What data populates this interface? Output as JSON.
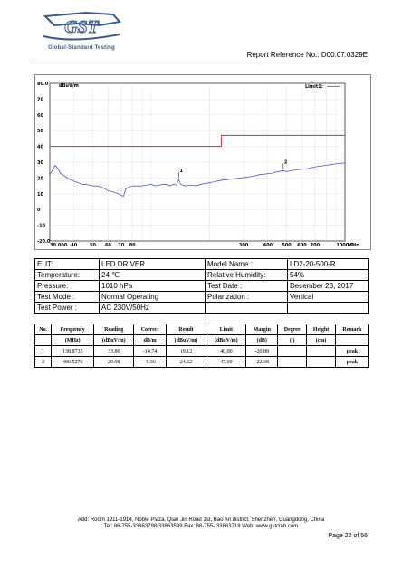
{
  "header": {
    "logo_text": "GST",
    "logo_subtitle": "Global-Standard Testing",
    "report_reference": "Report Reference No.: D00.07.0329E"
  },
  "chart_data": {
    "type": "line",
    "unit_label": "dBuV/m",
    "x_unit": "MHz",
    "x_scale": "log",
    "xlim": [
      30,
      1000
    ],
    "ylim": [
      -20,
      80
    ],
    "y_ticks": [
      "80.0",
      "70",
      "60",
      "50",
      "40",
      "30",
      "20",
      "10",
      "0",
      "-10",
      "-20.0"
    ],
    "x_ticks": [
      "30.000",
      "40",
      "50",
      "60",
      "70",
      "80",
      "300",
      "400",
      "500",
      "600",
      "700",
      "1000.0"
    ],
    "legend_label": "Limit1:",
    "legend_color": "#cc3333",
    "limit": {
      "color": "#cc3333",
      "points": [
        [
          30,
          40
        ],
        [
          230,
          40
        ],
        [
          230,
          47
        ],
        [
          1000,
          47
        ]
      ]
    },
    "series": [
      {
        "color": "#3344cc",
        "points": [
          [
            30,
            22
          ],
          [
            31,
            25
          ],
          [
            32,
            28
          ],
          [
            33,
            26
          ],
          [
            34,
            23
          ],
          [
            35,
            22
          ],
          [
            36,
            21
          ],
          [
            37,
            20
          ],
          [
            38,
            19
          ],
          [
            40,
            18
          ],
          [
            42,
            17
          ],
          [
            44,
            16
          ],
          [
            46,
            16
          ],
          [
            48,
            15.5
          ],
          [
            50,
            15
          ],
          [
            53,
            15
          ],
          [
            56,
            14
          ],
          [
            60,
            12
          ],
          [
            64,
            11
          ],
          [
            68,
            10
          ],
          [
            70,
            9
          ],
          [
            72,
            8.5
          ],
          [
            74,
            13
          ],
          [
            76,
            14
          ],
          [
            80,
            15
          ],
          [
            85,
            15
          ],
          [
            90,
            15
          ],
          [
            95,
            15.5
          ],
          [
            100,
            16
          ],
          [
            105,
            15
          ],
          [
            110,
            15.5
          ],
          [
            115,
            16
          ],
          [
            120,
            16
          ],
          [
            125,
            15
          ],
          [
            130,
            16
          ],
          [
            135,
            15.5
          ],
          [
            138.87,
            19.12
          ],
          [
            142,
            16
          ],
          [
            150,
            15
          ],
          [
            160,
            15.5
          ],
          [
            170,
            15
          ],
          [
            180,
            16
          ],
          [
            190,
            16.5
          ],
          [
            200,
            17
          ],
          [
            210,
            17.5
          ],
          [
            220,
            18
          ],
          [
            230,
            18.5
          ],
          [
            250,
            19
          ],
          [
            270,
            19.5
          ],
          [
            290,
            20
          ],
          [
            310,
            20.5
          ],
          [
            330,
            21
          ],
          [
            360,
            22
          ],
          [
            390,
            22.5
          ],
          [
            420,
            23
          ],
          [
            450,
            24
          ],
          [
            480.53,
            24.62
          ],
          [
            500,
            24
          ],
          [
            550,
            25
          ],
          [
            600,
            25.5
          ],
          [
            650,
            26
          ],
          [
            700,
            27
          ],
          [
            800,
            28
          ],
          [
            900,
            29
          ],
          [
            1000,
            29.5
          ]
        ]
      }
    ],
    "markers": [
      {
        "label": "1",
        "x": 138.8735,
        "y": 19.12
      },
      {
        "label": "2",
        "x": 480.5276,
        "y": 24.62
      }
    ]
  },
  "test_info": {
    "rows": [
      {
        "label1": "EUT:",
        "value1": "LED DRIVER",
        "label2": "Model Name :",
        "value2": "LD2-20-500-R"
      },
      {
        "label1": "Temperature:",
        "value1": "24 ℃",
        "label2": "Relative Humidity:",
        "value2": "54%"
      },
      {
        "label1": "Pressure:",
        "value1": "1010 hPa",
        "label2": "Test Date :",
        "value2": "December 23, 2017"
      },
      {
        "label1": "Test Mode :",
        "value1": "Normal Operating",
        "label2": "Polarization :",
        "value2": "Vertical"
      },
      {
        "label1": "Test Power :",
        "value1": "AC 230V/50Hz",
        "label2": "",
        "value2": ""
      }
    ]
  },
  "results": {
    "headers": [
      "No.",
      "Frequency",
      "Reading",
      "Correct",
      "Result",
      "Limit",
      "Margin",
      "Degree",
      "Height",
      "Remark"
    ],
    "units": [
      "",
      "(MHz)",
      "(dBuV/m)",
      "dB/m",
      "(dBuV/m)",
      "(dBuV/m)",
      "(dB)",
      "(    )",
      "(cm)",
      ""
    ],
    "rows": [
      [
        "1",
        "138.8735",
        "33.86",
        "-14.74",
        "19.12",
        "40.00",
        "-20.88",
        "",
        "",
        "peak"
      ],
      [
        "2",
        "480.5276",
        "29.98",
        "-5.36",
        "24.62",
        "47.00",
        "-22.38",
        "",
        "",
        "peak"
      ]
    ]
  },
  "footer": {
    "address": "Add: Room 1911-1914, Noble Plaza, Qian Jin Road 1st, Bao An district, Shenzhen, Guangdong, China",
    "contact": "Tel: 86-755-33863798/33863599    Fax: 86-755- 33863718    Web: www.gstclab.com",
    "page": "Page 22 of 56"
  }
}
